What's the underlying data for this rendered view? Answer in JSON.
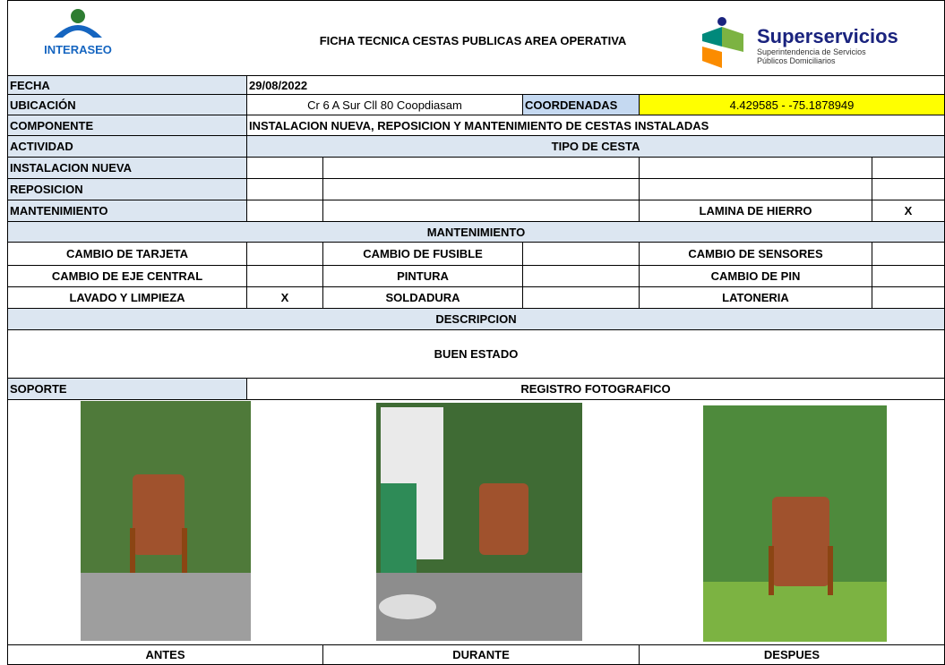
{
  "header": {
    "title": "FICHA TECNICA CESTAS PUBLICAS AREA OPERATIVA",
    "logo_left": "INTERASEO",
    "logo_right": {
      "name": "Superservicios",
      "line1": "Superintendencia de Servicios",
      "line2": "Públicos Domiciliarios"
    }
  },
  "fecha": {
    "label": "FECHA",
    "value": "29/08/2022"
  },
  "ubicacion": {
    "label": "UBICACIÓN",
    "value": "Cr 6 A Sur Cll 80 Coopdiasam",
    "coord_label": "COORDENADAS",
    "coord_value": "4.429585 - -75.1878949"
  },
  "componente": {
    "label": "COMPONENTE",
    "value": "INSTALACION NUEVA, REPOSICION Y MANTENIMIENTO DE CESTAS INSTALADAS"
  },
  "actividad": {
    "label": "ACTIVIDAD",
    "tipo_label": "TIPO DE CESTA",
    "rows": [
      {
        "label": "INSTALACION NUEVA"
      },
      {
        "label": "REPOSICION"
      },
      {
        "label": "MANTENIMIENTO",
        "tipo": "LAMINA DE HIERRO",
        "mark": "X"
      }
    ]
  },
  "mantenimiento": {
    "title": "MANTENIMIENTO",
    "items": [
      {
        "label": "CAMBIO DE TARJETA"
      },
      {
        "label": "CAMBIO DE FUSIBLE"
      },
      {
        "label": "CAMBIO DE SENSORES"
      },
      {
        "label": "CAMBIO DE EJE CENTRAL"
      },
      {
        "label": "PINTURA"
      },
      {
        "label": "CAMBIO DE PIN"
      },
      {
        "label": "LAVADO Y LIMPIEZA",
        "mark": "X"
      },
      {
        "label": "SOLDADURA"
      },
      {
        "label": "LATONERIA"
      }
    ]
  },
  "descripcion": {
    "title": "DESCRIPCION",
    "text": "BUEN ESTADO"
  },
  "soporte": {
    "label": "SOPORTE",
    "title": "REGISTRO FOTOGRAFICO",
    "photos": [
      "ANTES",
      "DURANTE",
      "DESPUES"
    ]
  }
}
